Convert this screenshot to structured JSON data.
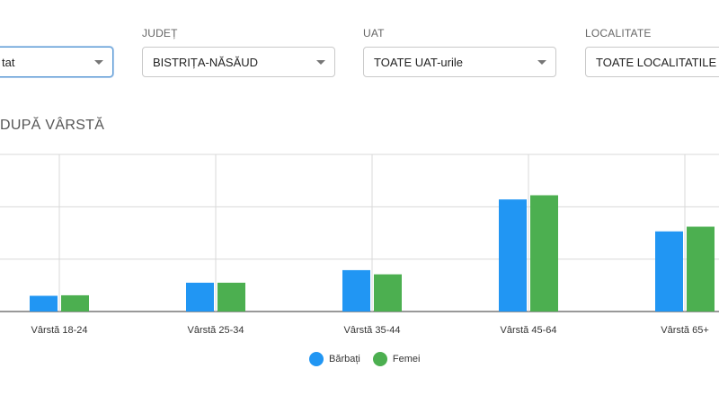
{
  "filters": {
    "first": {
      "label": "",
      "value": "tat"
    },
    "judet": {
      "label": "JUDEȚ",
      "value": "BISTRIȚA-NĂSĂUD"
    },
    "uat": {
      "label": "UAT",
      "value": "TOATE UAT-urile"
    },
    "localitate": {
      "label": "LOCALITATE",
      "value": "TOATE LOCALITATILE"
    }
  },
  "section": {
    "title": "DUPĂ VÂRSTĂ"
  },
  "chart_data": {
    "type": "bar",
    "categories": [
      "Vârstă 18-24",
      "Vârstă 25-34",
      "Vârstă 35-44",
      "Vârstă 45-64",
      "Vârstă 65+"
    ],
    "series": [
      {
        "name": "Bărbați",
        "color": "#2196f3",
        "values": [
          0.3,
          0.55,
          0.79,
          2.14,
          1.53
        ]
      },
      {
        "name": "Femei",
        "color": "#4caf50",
        "values": [
          0.31,
          0.55,
          0.71,
          2.22,
          1.62
        ]
      }
    ],
    "ylim": [
      0,
      3
    ],
    "grid": true,
    "legend": "bottom-center"
  }
}
